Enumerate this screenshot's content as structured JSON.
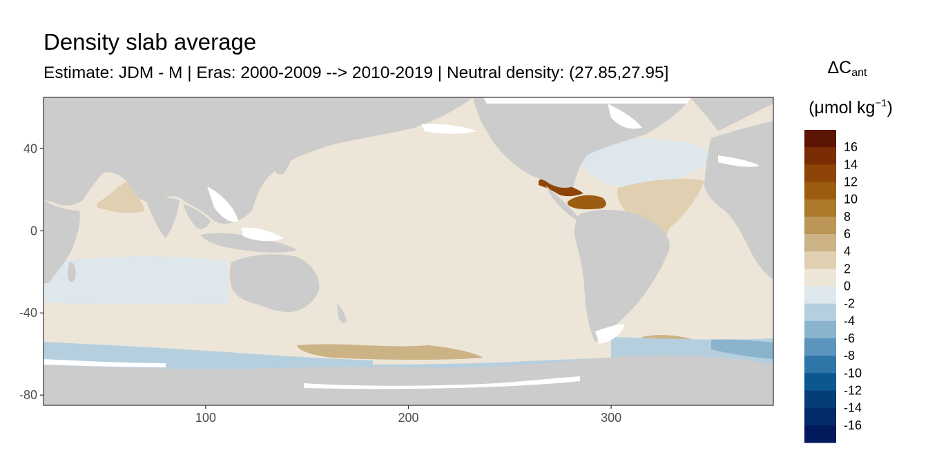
{
  "title": "Density slab average",
  "subtitle": "Estimate: JDM - M | Eras: 2000-2009 --> 2010-2019 | Neutral density: (27.85,27.95]",
  "legend": {
    "title_symbol": "ΔC",
    "title_sub": "ant",
    "units_prefix": "(μmol kg",
    "units_sup": "−1",
    "units_suffix": ")",
    "bins": [
      {
        "label": "16",
        "color": "#5c1503"
      },
      {
        "label": "14",
        "color": "#7a2d04"
      },
      {
        "label": "12",
        "color": "#8e4406"
      },
      {
        "label": "10",
        "color": "#9c5d12"
      },
      {
        "label": "8",
        "color": "#ab7a2b"
      },
      {
        "label": "6",
        "color": "#bc9657"
      },
      {
        "label": "4",
        "color": "#ccb386"
      },
      {
        "label": "2",
        "color": "#e0cfb0"
      },
      {
        "label": "0",
        "color": "#ede6d8"
      },
      {
        "label": "-2",
        "color": "#dde7ec"
      },
      {
        "label": "-4",
        "color": "#b6cfdf"
      },
      {
        "label": "-6",
        "color": "#8ab3ce"
      },
      {
        "label": "-8",
        "color": "#5b94bd"
      },
      {
        "label": "-10",
        "color": "#2e76a8"
      },
      {
        "label": "-12",
        "color": "#0b5890"
      },
      {
        "label": "-14",
        "color": "#053d76"
      },
      {
        "label": "-16",
        "color": "#032b69"
      },
      {
        "label": "",
        "color": "#021a5c"
      }
    ]
  },
  "axes": {
    "x_ticks": [
      100,
      200,
      300
    ],
    "y_ticks": [
      40,
      0,
      -40,
      -80
    ],
    "x_range": [
      20,
      380
    ],
    "y_range": [
      -85,
      65
    ]
  },
  "colors": {
    "land": "#cccccc",
    "ocean_base": "#ede6d8",
    "background": "#ffffff"
  }
}
